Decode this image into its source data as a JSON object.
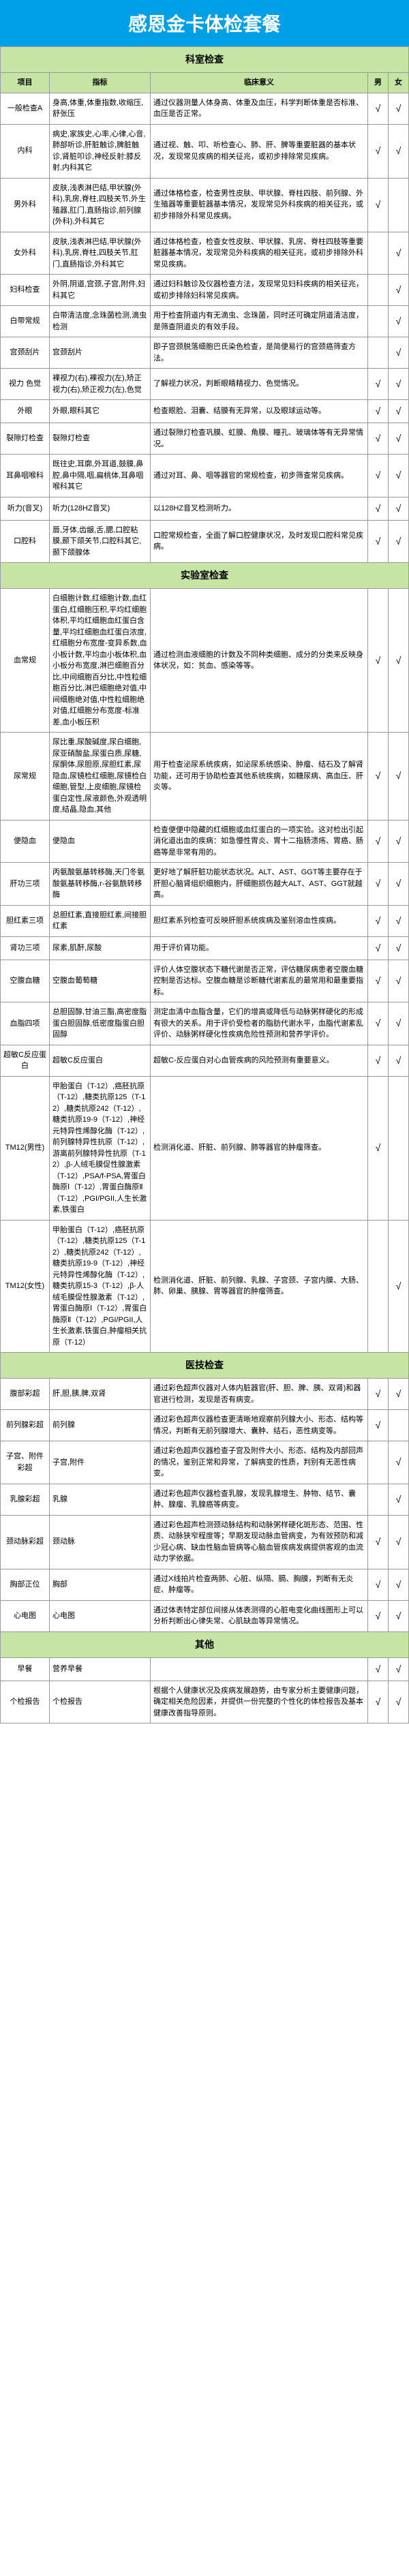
{
  "title": "感恩金卡体检套餐",
  "headers": {
    "project": "项目",
    "indicator": "指标",
    "meaning": "临床意义",
    "male": "男",
    "female": "女"
  },
  "sections": [
    {
      "name": "科室检查",
      "rows": [
        {
          "project": "一般检查A",
          "indicator": "身高,体重,体重指数,收缩压,舒张压",
          "meaning": "通过仪器测量人体身高、体重及血压，科学判断体重是否标准、血压是否正常。",
          "m": true,
          "f": true
        },
        {
          "project": "内科",
          "indicator": "病史,家族史,心率,心律,心音,肺部听诊,肝脏触诊,脾脏触诊,肾脏叩诊,神经反射:膝反射,内科其它",
          "meaning": "通过视、触、叩、听检查心、肺、肝、脾等重要脏器的基本状况，发现常见疾病的相关征兆，或初步排除常见疾病。",
          "m": true,
          "f": true
        },
        {
          "project": "男外科",
          "indicator": "皮肤,浅表淋巴结,甲状腺(外科),乳房,脊柱,四肢关节,外生殖器,肛门,直肠指诊,前列腺(外科),外科其它",
          "meaning": "通过体格检查，检查男性皮肤、甲状腺、脊柱四肢、前列腺、外生殖器等重要脏器基本情况，发现常见外科疾病的相关征兆，或初步排除外科常见疾病。",
          "m": true,
          "f": false
        },
        {
          "project": "女外科",
          "indicator": "皮肤,浅表淋巴结,甲状腺(外科),乳房,脊柱,四肢关节,肛门,直肠指诊,外科其它",
          "meaning": "通过体格检查，检查女性皮肤、甲状腺、乳房、脊柱四肢等重要脏器基本情况，发现常见外科疾病的相关征兆，或初步排除外科常见疾病。",
          "m": false,
          "f": true
        },
        {
          "project": "妇科检查",
          "indicator": "外阴,阴道,宫颈,子宫,附件,妇科其它",
          "meaning": "通过妇科触诊及仪器检查方法，发现常见妇科疾病的相关征兆，或初步排除妇科常见疾病。",
          "m": false,
          "f": true
        },
        {
          "project": "白带常规",
          "indicator": "白带清洁度,念珠菌检测,滴虫检测",
          "meaning": "用于检查阴道内有无滴虫、念珠菌，同时还可确定阴道清洁度，是筛查阴道炎的有效手段。",
          "m": false,
          "f": true
        },
        {
          "project": "宫颈刮片",
          "indicator": "宫颈刮片",
          "meaning": "即子宫颈脱落细胞巴氏染色检查，是简便易行的宫颈癌筛查方法。",
          "m": false,
          "f": true
        },
        {
          "project": "视力 色觉",
          "indicator": "裸视力(右),裸视力(左),矫正视力(右),矫正视力(左),色觉",
          "meaning": "了解视力状况，判断眼睛精视力、色觉情况。",
          "m": true,
          "f": true
        },
        {
          "project": "外眼",
          "indicator": "外眼,眼科其它",
          "meaning": "检查眼脸、泪囊、结膜有无异常，以及眼球运动等。",
          "m": true,
          "f": true
        },
        {
          "project": "裂隙灯检查",
          "indicator": "裂隙灯检查",
          "meaning": "通过裂隙灯检查巩膜、虹膜、角膜、瞳孔、玻璃体等有无异常情况。",
          "m": true,
          "f": true
        },
        {
          "project": "耳鼻咽喉科",
          "indicator": "既往史,耳廓,外耳道,鼓膜,鼻腔,鼻中隔,咽,扁桃体,耳鼻咽喉科其它",
          "meaning": "通过对耳、鼻、咽等器官的常规检查，初步筛查常见疾病。",
          "m": true,
          "f": true
        },
        {
          "project": "听力(音叉)",
          "indicator": "听力(128HZ音叉)",
          "meaning": "以128HZ音叉检测听力。",
          "m": true,
          "f": true
        },
        {
          "project": "口腔科",
          "indicator": "唇,牙体,齿龈,舌,腮,口腔粘膜,颞下颌关节,口腔科其它,颞下颌腺体",
          "meaning": "口腔常规检查，全面了解口腔健康状况，及时发现口腔科常见疾病。",
          "m": true,
          "f": true
        }
      ]
    },
    {
      "name": "实验室检查",
      "rows": [
        {
          "project": "血常规",
          "indicator": "白细胞计数,红细胞计数,血红蛋白,红细胞压积,平均红细胞体积,平均红细胞血红蛋白含量,平均红细胞血红蛋白浓度,红细胞分布宽度-变异系数,血小板计数,平均血小板体积,血小板分布宽度,淋巴细胞百分比,中间细胞百分比,中性粒细胞百分比,淋巴细胞绝对值,中间细胞绝对值,中性粒细胞绝对值,红细胞分布宽度-标准差,血小板压积",
          "meaning": "通过检测血液细胞的计数及不同种类细胞、成分的分类来反映身体状况，如：贫血、感染等等。",
          "m": true,
          "f": true
        },
        {
          "project": "尿常规",
          "indicator": "尿比重,尿酸碱度,尿白细胞,尿亚硝酸盐,尿蛋白质,尿糖,尿酮体,尿胆原,尿胆红素,尿隐血,尿镜检红细胞,尿镜检白细胞,管型,上皮细胞,尿镜检蛋白定性,尿液颜色,外观透明度,结晶,隐血,其他",
          "meaning": "用于检查泌尿系统疾病，如泌尿系统感染、肿瘤、结石及了解肾功能，还可用于协助检查其他系统疾病，如糖尿病、高血压、肝炎等。",
          "m": true,
          "f": true
        },
        {
          "project": "便隐血",
          "indicator": "便隐血",
          "meaning": "检查便便中隐藏的红细胞或血红蛋白的一项实验。这对检出引起消化道出血的疾病：如急慢性胃炎、胃十二指肠溃疡、胃癌、肠癌等是非常有用的。",
          "m": true,
          "f": true
        },
        {
          "project": "肝功三项",
          "indicator": "丙氨酸氨基转移酶,天门冬氨酸氨基转移酶,r-谷氨酰转移酶",
          "meaning": "更好地了解肝脏功能状态状况。ALT、AST、GGT等主要存在于肝胆心脑肾组织细胞内，肝细胞损伤越大ALT、AST、GGT就越高。",
          "m": true,
          "f": true
        },
        {
          "project": "胆红素三项",
          "indicator": "总胆红素,直接胆红素,间接胆红素",
          "meaning": "胆红素系列检查可反映肝胆系统疾病及鉴别溶血性疾病。",
          "m": true,
          "f": true
        },
        {
          "project": "肾功三项",
          "indicator": "尿素,肌酐,尿酸",
          "meaning": "用于评价肾功能。",
          "m": true,
          "f": true
        },
        {
          "project": "空腹血糖",
          "indicator": "空腹血葡萄糖",
          "meaning": "评价人体空腹状态下糖代谢是否正常，评估糖尿病患者空腹血糖控制是否达标。空腹血糖是诊断糖代谢紊乱的最常用和最重要指标。",
          "m": true,
          "f": true
        },
        {
          "project": "血脂四项",
          "indicator": "总胆固醇,甘油三酯,高密度脂蛋白胆固醇,低密度脂蛋白胆固醇",
          "meaning": "测定血清中血脂含量，它们的增高或降低与动脉粥样硬化的形成有很大的关系。用于评价受检者的脂肪代谢水平，血脂代谢紊乱评价、动脉粥样硬化性疾病危险性预测和营养学评价。",
          "m": true,
          "f": true
        },
        {
          "project": "超敏C反应蛋白",
          "indicator": "超敏C反应蛋白",
          "meaning": "超敏C-反应蛋白对心血管疾病的风险预测有重要意义。",
          "m": true,
          "f": true
        },
        {
          "project": "TM12(男性)",
          "indicator": "甲胎蛋白（T-12）,癌胚抗原（T-12）,糖类抗原125（T-12）,糖类抗原242（T-12）,糖类抗原19-9（T-12）,神经元特异性烯醇化酶（T-12）,前列腺特异性抗原（T-12）,游离前列腺特异性抗原（T-12）,β-人绒毛膜促性腺激素（T-12）,PSA/f-PSA,胃蛋白酶原Ⅰ（T-12）,胃蛋白酶原Ⅱ（T-12）,PGI/PGII,人生长激素,铁蛋白",
          "meaning": "检测消化道、肝脏、前列腺、肺等器官的肿瘤筛查。",
          "m": true,
          "f": false
        },
        {
          "project": "TM12(女性)",
          "indicator": "甲胎蛋白（T-12）,癌胚抗原（T-12）,糖类抗原125（T-12）,糖类抗原242（T-12）,糖类抗原19-9（T-12）,神经元特异性烯醇化酶（T-12）,糖类抗原15-3（T-12）,β-人绒毛膜促性腺激素（T-12）,胃蛋白酶原Ⅰ（T-12）,胃蛋白酶原Ⅱ（T-12）,PGI/PGII,人生长激素,铁蛋白,肿瘤相关抗原（T-12）",
          "meaning": "检测消化道、肝脏、前列腺、乳腺、子宫颈、子宫内膜、大肠、肺、卵巢、胰腺、胃等器官的肿瘤筛查。",
          "m": false,
          "f": true
        }
      ]
    },
    {
      "name": "医技检查",
      "rows": [
        {
          "project": "腹部彩超",
          "indicator": "肝,胆,胰,脾,双肾",
          "meaning": "通过彩色超声仪器对人体内脏器官(肝、胆、脾、胰、双肾)和器官进行检测，发现是否有病变。",
          "m": true,
          "f": true
        },
        {
          "project": "前列腺彩超",
          "indicator": "前列腺",
          "meaning": "通过彩色超声仪器检查更清晰地观察前列腺大小、形态、结构等情况，判断有无前列腺增大、囊肿、结石，恶性病变等。",
          "m": true,
          "f": false
        },
        {
          "project": "子宫、附件彩超",
          "indicator": "子宫,附件",
          "meaning": "通过彩色超声仪器检查子宫及附件大小、形态、结构及内部回声的情况，鉴别正常和异常，了解病变的性质，判别有无恶性病变。",
          "m": false,
          "f": true
        },
        {
          "project": "乳腺彩超",
          "indicator": "乳腺",
          "meaning": "通过彩色超声仪器检查乳腺，发现乳腺增生、肿物、结节、囊肿、腺瘤、乳腺癌等病变。",
          "m": false,
          "f": true
        },
        {
          "project": "颈动脉彩超",
          "indicator": "颈动脉",
          "meaning": "通过彩色超声检测颈动脉结构和动脉粥样硬化斑形态、范围、性质、动脉狭窄程度等；早期发现动脉血管病变，为有效预防和减少冠心病、缺血性脑血管病等心脑血管疾病发病提供客观的血流动力学依据。",
          "m": true,
          "f": true
        },
        {
          "project": "胸部正位",
          "indicator": "胸部",
          "meaning": "通过X线拍片检查两肺、心脏、纵隔、膈、胸膜，判断有无炎症、肿瘤等。",
          "m": true,
          "f": true
        },
        {
          "project": "心电图",
          "indicator": "心电图",
          "meaning": "通过体表特定部位间接从体表测得的心脏电变化曲线图形上可以分析判断出心律失常、心肌缺血等异常情况。",
          "m": true,
          "f": true
        }
      ]
    },
    {
      "name": "其他",
      "rows": [
        {
          "project": "早餐",
          "indicator": "营养早餐",
          "meaning": "",
          "m": true,
          "f": true
        },
        {
          "project": "个检报告",
          "indicator": "个检报告",
          "meaning": "根据个人健康状况及疾病发展趋势，由专家分析主要健康问题，确定相关危险因素，并提供一份完整的个性化的体检报告及基本健康改善指导原则。",
          "m": true,
          "f": true
        }
      ]
    }
  ]
}
